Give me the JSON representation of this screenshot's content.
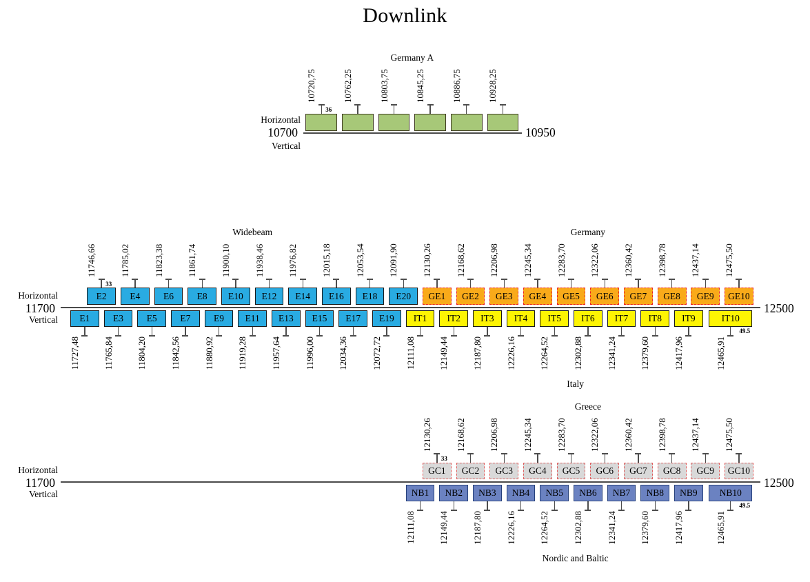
{
  "title": "Downlink",
  "styles": {
    "axis_color": "#4a4a4a",
    "tick_color": "#4d4d4d",
    "text_color": "#000000"
  },
  "sections": [
    {
      "id": "germany-a",
      "axis": {
        "min": 10700,
        "max": 10950,
        "min_label": "10700",
        "max_label": "10950"
      },
      "left_labels": {
        "top": "Horizontal",
        "bottom": "Vertical"
      },
      "rows": [
        {
          "side": "above",
          "groups": [
            {
              "beam": "Germany A",
              "fill": "#a7c878",
              "border": "#3f3b22",
              "border_style": "solid",
              "bw": 36,
              "annotation": {
                "text": "36",
                "channel": 0,
                "placement": "top"
              },
              "channels": [
                {
                  "label": "",
                  "freq": 10720.75,
                  "freq_label": "10720,75"
                },
                {
                  "label": "",
                  "freq": 10762.25,
                  "freq_label": "10762,25"
                },
                {
                  "label": "",
                  "freq": 10803.75,
                  "freq_label": "10803,75"
                },
                {
                  "label": "",
                  "freq": 10845.25,
                  "freq_label": "10845,25"
                },
                {
                  "label": "",
                  "freq": 10886.75,
                  "freq_label": "10886,75"
                },
                {
                  "label": "",
                  "freq": 10928.25,
                  "freq_label": "10928,25"
                }
              ]
            }
          ]
        }
      ]
    },
    {
      "id": "widebeam-germany-italy",
      "axis": {
        "min": 11700,
        "max": 12500,
        "min_label": "11700",
        "max_label": "12500"
      },
      "left_labels": {
        "top": "Horizontal",
        "bottom": "Vertical"
      },
      "rows": [
        {
          "side": "above",
          "groups": [
            {
              "beam": "Widebeam",
              "fill": "#29abe2",
              "border": "#1a1a1a",
              "border_style": "solid",
              "bw": 33,
              "annotation": {
                "text": "33",
                "channel": 0,
                "placement": "top"
              },
              "channels": [
                {
                  "label": "E2",
                  "freq": 11746.66,
                  "freq_label": "11746,66"
                },
                {
                  "label": "E4",
                  "freq": 11785.02,
                  "freq_label": "11785,02"
                },
                {
                  "label": "E6",
                  "freq": 11823.38,
                  "freq_label": "11823,38"
                },
                {
                  "label": "E8",
                  "freq": 11861.74,
                  "freq_label": "11861,74"
                },
                {
                  "label": "E10",
                  "freq": 11900.1,
                  "freq_label": "11900,10"
                },
                {
                  "label": "E12",
                  "freq": 11938.46,
                  "freq_label": "11938,46"
                },
                {
                  "label": "E14",
                  "freq": 11976.82,
                  "freq_label": "11976,82"
                },
                {
                  "label": "E16",
                  "freq": 12015.18,
                  "freq_label": "12015,18"
                },
                {
                  "label": "E18",
                  "freq": 12053.54,
                  "freq_label": "12053,54"
                },
                {
                  "label": "E20",
                  "freq": 12091.9,
                  "freq_label": "12091,90"
                }
              ]
            },
            {
              "beam": "Germany",
              "fill": "#f9aa1a",
              "border": "#ec2127",
              "border_style": "dashed",
              "bw": 33,
              "channels": [
                {
                  "label": "GE1",
                  "freq": 12130.26,
                  "freq_label": "12130,26"
                },
                {
                  "label": "GE2",
                  "freq": 12168.62,
                  "freq_label": "12168,62"
                },
                {
                  "label": "GE3",
                  "freq": 12206.98,
                  "freq_label": "12206,98"
                },
                {
                  "label": "GE4",
                  "freq": 12245.34,
                  "freq_label": "12245,34"
                },
                {
                  "label": "GE5",
                  "freq": 12283.7,
                  "freq_label": "12283,70"
                },
                {
                  "label": "GE6",
                  "freq": 12322.06,
                  "freq_label": "12322,06"
                },
                {
                  "label": "GE7",
                  "freq": 12360.42,
                  "freq_label": "12360,42"
                },
                {
                  "label": "GE8",
                  "freq": 12398.78,
                  "freq_label": "12398,78"
                },
                {
                  "label": "GE9",
                  "freq": 12437.14,
                  "freq_label": "12437,14"
                },
                {
                  "label": "GE10",
                  "freq": 12475.5,
                  "freq_label": "12475,50"
                }
              ]
            }
          ]
        },
        {
          "side": "below",
          "groups": [
            {
              "beam": "",
              "fill": "#29abe2",
              "border": "#1a1a1a",
              "border_style": "solid",
              "bw": 33,
              "channels": [
                {
                  "label": "E1",
                  "freq": 11727.48,
                  "freq_label": "11727,48"
                },
                {
                  "label": "E3",
                  "freq": 11765.84,
                  "freq_label": "11765,84"
                },
                {
                  "label": "E5",
                  "freq": 11804.2,
                  "freq_label": "11804,20"
                },
                {
                  "label": "E7",
                  "freq": 11842.56,
                  "freq_label": "11842,56"
                },
                {
                  "label": "E9",
                  "freq": 11880.92,
                  "freq_label": "11880,92"
                },
                {
                  "label": "E11",
                  "freq": 11919.28,
                  "freq_label": "11919,28"
                },
                {
                  "label": "E13",
                  "freq": 11957.64,
                  "freq_label": "11957,64"
                },
                {
                  "label": "E15",
                  "freq": 11996.0,
                  "freq_label": "11996,00"
                },
                {
                  "label": "E17",
                  "freq": 12034.36,
                  "freq_label": "12034,36"
                },
                {
                  "label": "E19",
                  "freq": 12072.72,
                  "freq_label": "12072,72"
                }
              ]
            },
            {
              "beam": "Italy",
              "fill": "#fdf403",
              "border": "#1a1a1a",
              "border_style": "solid",
              "bw": 33,
              "annotation": {
                "text": "49.5",
                "channel": 9,
                "placement": "bottom"
              },
              "channels": [
                {
                  "label": "IT1",
                  "freq": 12111.08,
                  "freq_label": "12111,08"
                },
                {
                  "label": "IT2",
                  "freq": 12149.44,
                  "freq_label": "12149,44"
                },
                {
                  "label": "IT3",
                  "freq": 12187.8,
                  "freq_label": "12187,80"
                },
                {
                  "label": "IT4",
                  "freq": 12226.16,
                  "freq_label": "12226,16"
                },
                {
                  "label": "IT5",
                  "freq": 12264.52,
                  "freq_label": "12264,52"
                },
                {
                  "label": "IT6",
                  "freq": 12302.88,
                  "freq_label": "12302,88"
                },
                {
                  "label": "IT7",
                  "freq": 12341.24,
                  "freq_label": "12341,24"
                },
                {
                  "label": "IT8",
                  "freq": 12379.6,
                  "freq_label": "12379,60"
                },
                {
                  "label": "IT9",
                  "freq": 12417.96,
                  "freq_label": "12417,96"
                },
                {
                  "label": "IT10",
                  "freq": 12465.91,
                  "freq_label": "12465,91",
                  "bw": 49.5
                }
              ]
            }
          ]
        }
      ]
    },
    {
      "id": "greece-nordic-baltic",
      "axis": {
        "min": 11700,
        "max": 12500,
        "min_label": "11700",
        "max_label": "12500"
      },
      "left_labels": {
        "top": "Horizontal",
        "bottom": "Vertical"
      },
      "rows": [
        {
          "side": "above",
          "groups": [
            {
              "beam": "Greece",
              "fill": "#d9d9d9",
              "border": "#e05d5d",
              "border_style": "dashed",
              "bw": 33,
              "annotation": {
                "text": "33",
                "channel": 0,
                "placement": "top"
              },
              "channels": [
                {
                  "label": "GC1",
                  "freq": 12130.26,
                  "freq_label": "12130,26"
                },
                {
                  "label": "GC2",
                  "freq": 12168.62,
                  "freq_label": "12168,62"
                },
                {
                  "label": "GC3",
                  "freq": 12206.98,
                  "freq_label": "12206,98"
                },
                {
                  "label": "GC4",
                  "freq": 12245.34,
                  "freq_label": "12245,34"
                },
                {
                  "label": "GC5",
                  "freq": 12283.7,
                  "freq_label": "12283,70"
                },
                {
                  "label": "GC6",
                  "freq": 12322.06,
                  "freq_label": "12322,06"
                },
                {
                  "label": "GC7",
                  "freq": 12360.42,
                  "freq_label": "12360,42"
                },
                {
                  "label": "GC8",
                  "freq": 12398.78,
                  "freq_label": "12398,78"
                },
                {
                  "label": "GC9",
                  "freq": 12437.14,
                  "freq_label": "12437,14"
                },
                {
                  "label": "GC10",
                  "freq": 12475.5,
                  "freq_label": "12475,50"
                }
              ]
            }
          ]
        },
        {
          "side": "below",
          "groups": [
            {
              "beam": "Nordic and Baltic",
              "fill": "#6b82c1",
              "border": "#27417b",
              "border_style": "solid",
              "bw": 33,
              "annotation": {
                "text": "49.5",
                "channel": 9,
                "placement": "bottom"
              },
              "channels": [
                {
                  "label": "NB1",
                  "freq": 12111.08,
                  "freq_label": "12111,08"
                },
                {
                  "label": "NB2",
                  "freq": 12149.44,
                  "freq_label": "12149,44"
                },
                {
                  "label": "NB3",
                  "freq": 12187.8,
                  "freq_label": "12187,80"
                },
                {
                  "label": "NB4",
                  "freq": 12226.16,
                  "freq_label": "12226,16"
                },
                {
                  "label": "NB5",
                  "freq": 12264.52,
                  "freq_label": "12264,52"
                },
                {
                  "label": "NB6",
                  "freq": 12302.88,
                  "freq_label": "12302,88"
                },
                {
                  "label": "NB7",
                  "freq": 12341.24,
                  "freq_label": "12341,24"
                },
                {
                  "label": "NB8",
                  "freq": 12379.6,
                  "freq_label": "12379,60"
                },
                {
                  "label": "NB9",
                  "freq": 12417.96,
                  "freq_label": "12417,96"
                },
                {
                  "label": "NB10",
                  "freq": 12465.91,
                  "freq_label": "12465,91",
                  "bw": 49.5
                }
              ]
            }
          ]
        }
      ]
    }
  ]
}
